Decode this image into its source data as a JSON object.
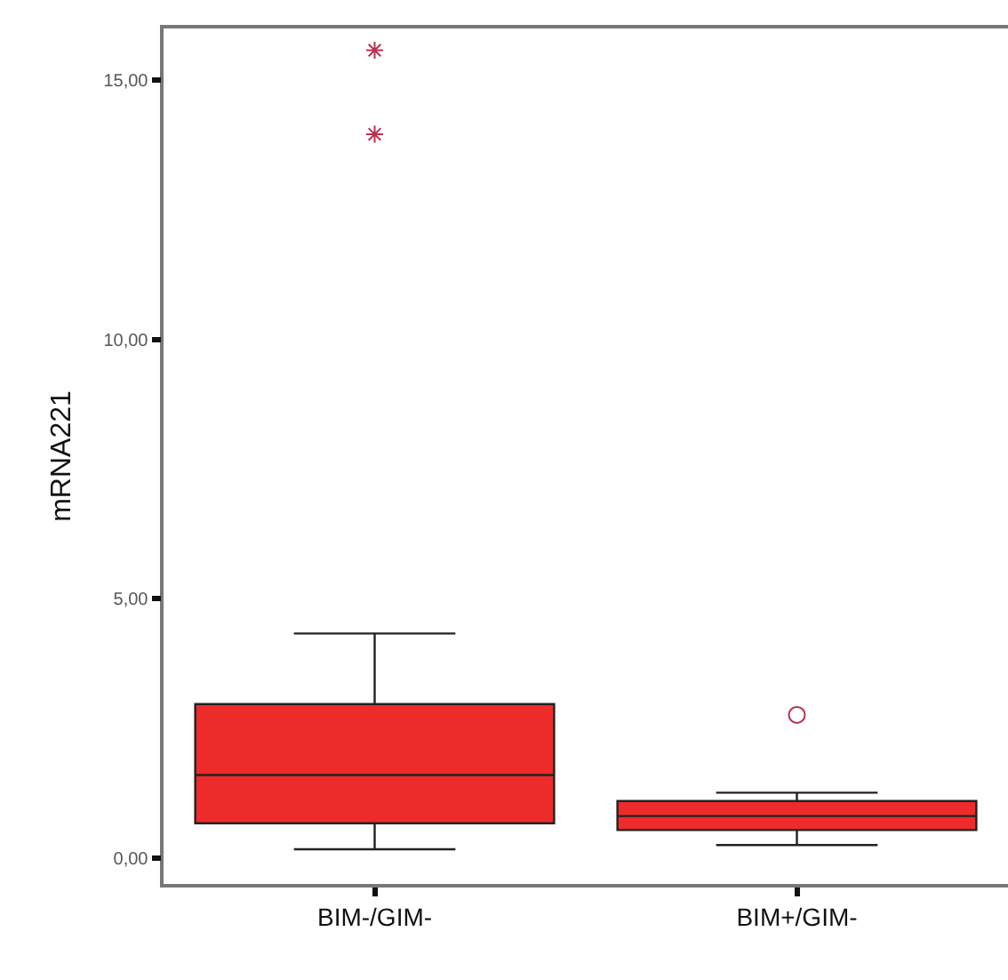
{
  "chart_data": {
    "type": "box",
    "ylabel": "mRNA221",
    "categories": [
      "BIM-/GIM-",
      "BIM+/GIM-"
    ],
    "series": [
      {
        "color": "#ee2b2b",
        "boxes": [
          {
            "low": 0.17,
            "q1": 0.67,
            "median": 1.6,
            "q3": 2.97,
            "high": 4.33,
            "outliers": [
              13.96,
              15.58
            ]
          },
          {
            "low": 0.25,
            "q1": 0.54,
            "median": 0.81,
            "q3": 1.1,
            "high": 1.26,
            "outliers": [
              2.76
            ]
          }
        ]
      }
    ],
    "ylim": [
      -0.5,
      16
    ],
    "yticks": [
      {
        "value": 0,
        "label": "0,00"
      },
      {
        "value": 5,
        "label": "5,00"
      },
      {
        "value": 10,
        "label": "10,00"
      },
      {
        "value": 15,
        "label": "15,00"
      }
    ]
  }
}
